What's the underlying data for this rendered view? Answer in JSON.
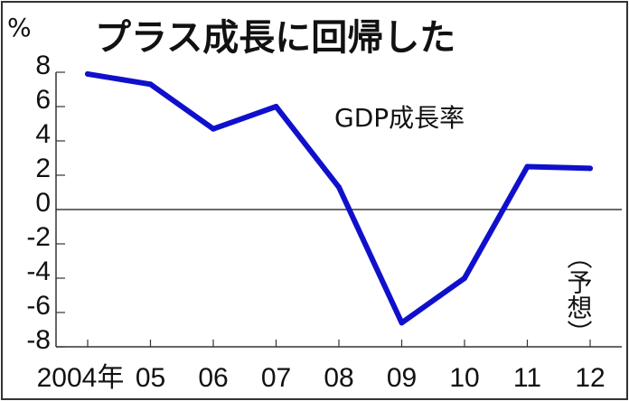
{
  "chart_data": {
    "type": "line",
    "title": "プラス成長に回帰した",
    "ylabel": "%",
    "series_label": "GDP成長率",
    "forecast_note": "（予想）",
    "categories": [
      "2004年",
      "05",
      "06",
      "07",
      "08",
      "09",
      "10",
      "11",
      "12"
    ],
    "series": [
      {
        "name": "GDP成長率",
        "values": [
          7.9,
          7.3,
          4.7,
          6.0,
          1.3,
          -6.6,
          -4.0,
          2.5,
          2.4
        ],
        "color": "#1010cc"
      }
    ],
    "yticks": [
      8,
      6,
      4,
      2,
      0,
      -2,
      -4,
      -6,
      -8
    ],
    "ylim": [
      -8,
      8
    ],
    "grid": false
  }
}
